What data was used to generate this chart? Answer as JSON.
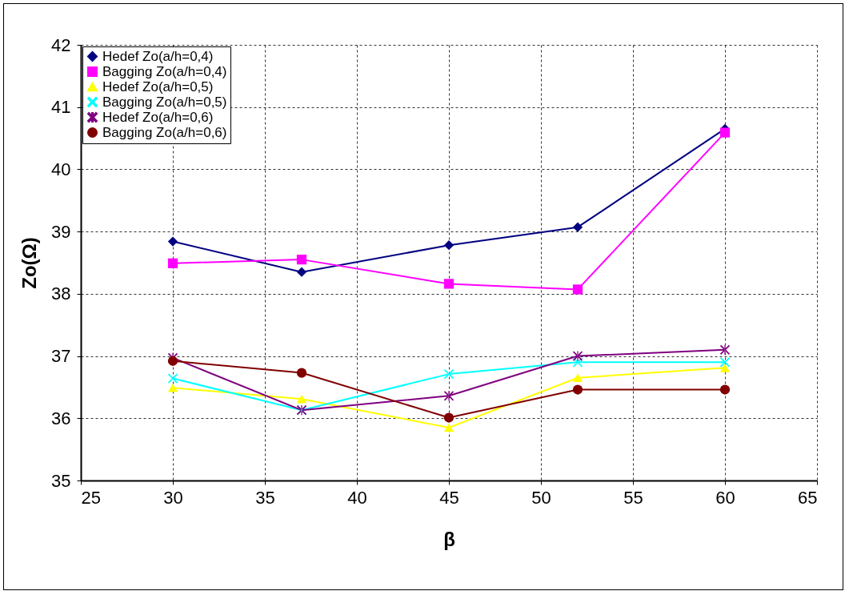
{
  "chart_data": {
    "type": "line",
    "xlabel": "β",
    "ylabel": "Zo(Ω)",
    "x": [
      30,
      37,
      45,
      52,
      60
    ],
    "xlim": [
      25,
      65
    ],
    "xticks": [
      25,
      30,
      35,
      40,
      45,
      50,
      55,
      60,
      65
    ],
    "ylim": [
      35,
      42
    ],
    "yticks": [
      35,
      36,
      37,
      38,
      39,
      40,
      41,
      42
    ],
    "grid": true,
    "legend": "top left",
    "line_style": "solid",
    "series": [
      {
        "name": "Hedef Zo(a/h=0,4)",
        "color": "#000080",
        "marker": "diamond",
        "values": [
          38.84,
          38.35,
          38.78,
          39.07,
          40.65
        ]
      },
      {
        "name": " Bagging Zo(a/h=0,4)",
        "color": "#ff00ff",
        "marker": "square",
        "values": [
          38.49,
          38.55,
          38.16,
          38.07,
          40.59
        ]
      },
      {
        "name": "Hedef Zo(a/h=0,5)",
        "color": "#ffff00",
        "marker": "triangle",
        "values": [
          36.49,
          36.31,
          35.85,
          36.65,
          36.81
        ]
      },
      {
        "name": " Bagging Zo(a/h=0,5)",
        "color": "#00ffff",
        "marker": "cross",
        "values": [
          36.64,
          36.13,
          36.71,
          36.9,
          36.9
        ]
      },
      {
        "name": "Hedef Zo(a/h=0,6)",
        "color": "#800080",
        "marker": "star",
        "values": [
          36.97,
          36.13,
          36.36,
          37.0,
          37.1
        ]
      },
      {
        "name": " Bagging Zo(a/h=0,6)",
        "color": "#800000",
        "marker": "circle",
        "values": [
          36.92,
          36.73,
          36.01,
          36.46,
          36.46
        ]
      }
    ]
  }
}
